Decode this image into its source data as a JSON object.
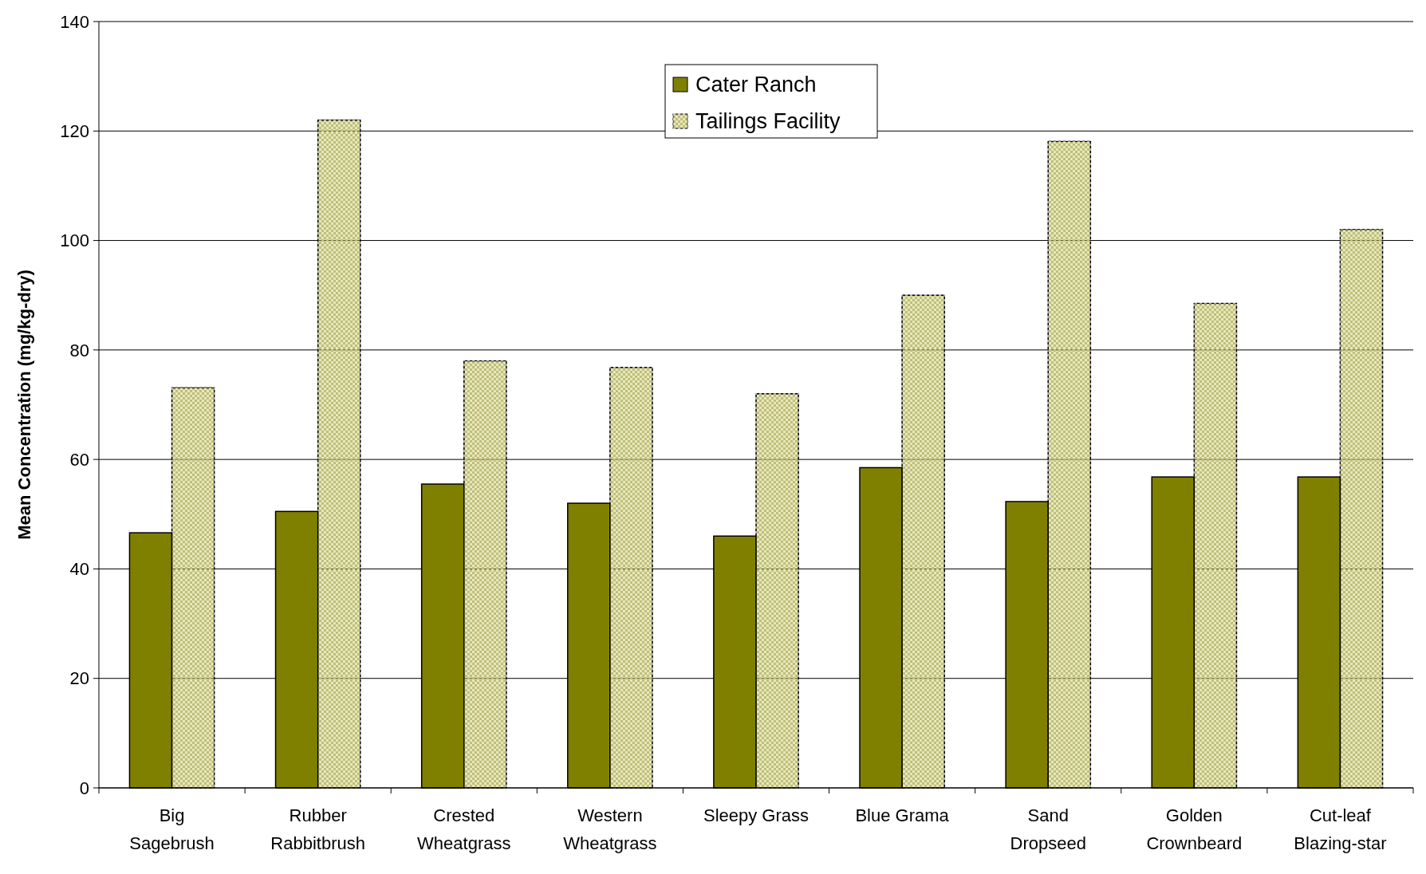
{
  "chart_data": {
    "type": "bar",
    "ylabel": "Mean Concentration (mg/kg-dry)",
    "categories": [
      "Big\nSagebrush",
      "Rubber\nRabbitbrush",
      "Crested\nWheatgrass",
      "Western\nWheatgrass",
      "Sleepy Grass",
      "Blue Grama",
      "Sand\nDropseed",
      "Golden\nCrownbeard",
      "Cut-leaf\nBlazing-star"
    ],
    "series": [
      {
        "name": "Cater Ranch",
        "color": "#808000",
        "values": [
          46.6,
          50.5,
          55.5,
          52,
          46,
          58.5,
          52.3,
          56.8,
          56.8
        ]
      },
      {
        "name": "Tailings Facility",
        "color": "#c0c070",
        "values": [
          73.1,
          122,
          78,
          76.8,
          72,
          90,
          118.1,
          88.5,
          102
        ]
      }
    ],
    "ylim": [
      0,
      140
    ],
    "yticks": [
      0,
      20,
      40,
      60,
      80,
      100,
      120,
      140
    ],
    "grid": "y",
    "legend": "top"
  }
}
